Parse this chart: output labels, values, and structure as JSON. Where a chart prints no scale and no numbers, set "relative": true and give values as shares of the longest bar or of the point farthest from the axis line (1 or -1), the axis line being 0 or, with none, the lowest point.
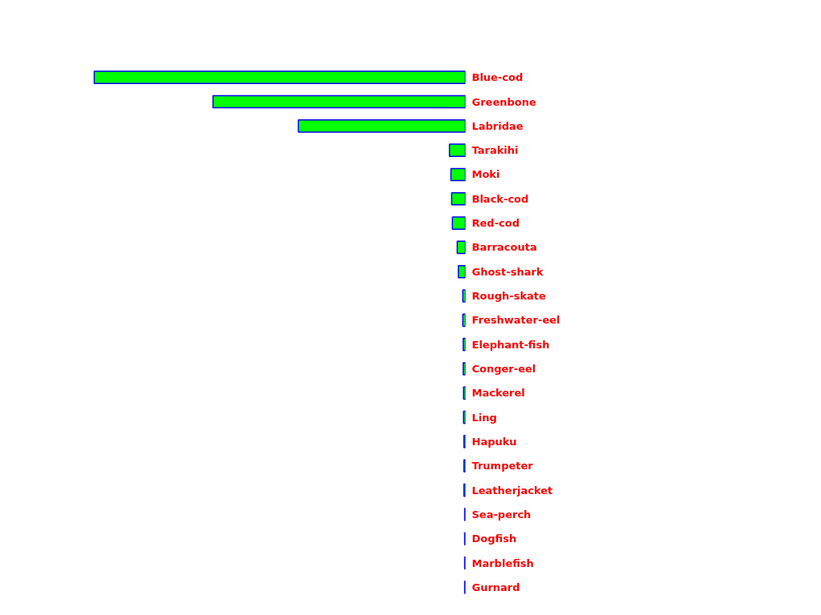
{
  "chart_data": {
    "type": "bar",
    "orientation": "horizontal",
    "relative": true,
    "categories": [
      "Blue-cod",
      "Greenbone",
      "Labridae",
      "Tarakihi",
      "Moki",
      "Black-cod",
      "Red-cod",
      "Barracouta",
      "Ghost-shark",
      "Rough-skate",
      "Freshwater-eel",
      "Elephant-fish",
      "Conger-eel",
      "Mackerel",
      "Ling",
      "Hapuku",
      "Trumpeter",
      "Leatherjacket",
      "Sea-perch",
      "Dogfish",
      "Marblefish",
      "Gurnard"
    ],
    "values": [
      1,
      0.68,
      0.45,
      0.043,
      0.039,
      0.037,
      0.035,
      0.022,
      0.019,
      0.007,
      0.007,
      0.006,
      0.006,
      0.005,
      0.005,
      0.004,
      0.004,
      0.004,
      0.002,
      0.002,
      0.002,
      0.002
    ],
    "color": "#00ff00"
  }
}
